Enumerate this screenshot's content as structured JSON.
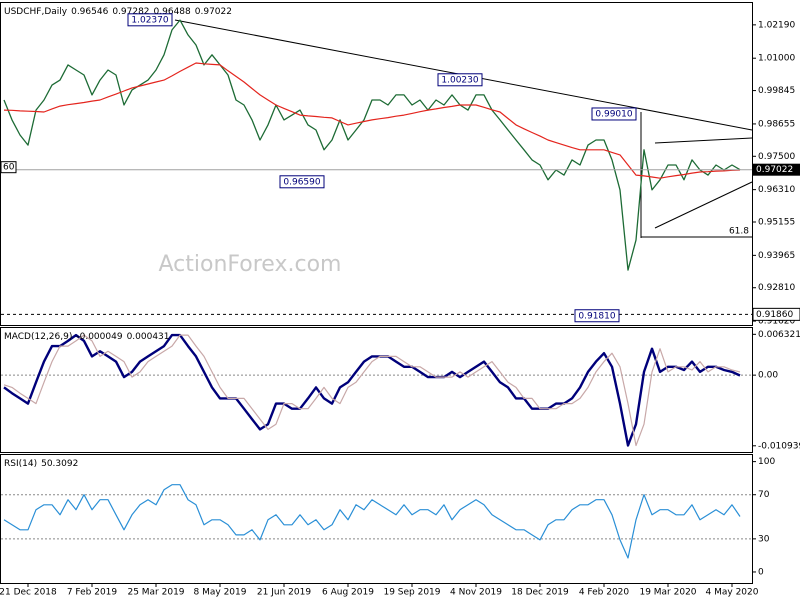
{
  "chart_data": [
    {
      "type": "line",
      "symbol": "USDCHF,Daily",
      "ohlc": [
        0.96546,
        0.97282,
        0.96488,
        0.97022
      ],
      "series": [
        {
          "color": "#1d6b35",
          "values": [
            0.9951,
            0.988,
            0.9826,
            0.979,
            0.9915,
            0.9951,
            1.0004,
            1.0022,
            1.0076,
            1.0058,
            1.004,
            0.9969,
            1.0022,
            1.0058,
            1.004,
            0.9933,
            0.9987,
            1.0004,
            1.0022,
            1.0058,
            1.0112,
            1.0201,
            1.0236,
            1.0183,
            1.0147,
            1.0076,
            1.0112,
            1.0076,
            1.004,
            0.9951,
            0.9933,
            0.988,
            0.9808,
            0.9862,
            0.9933,
            0.988,
            0.9897,
            0.9915,
            0.9862,
            0.9844,
            0.9773,
            0.9808,
            0.988,
            0.9808,
            0.9844,
            0.988,
            0.9951,
            0.9951,
            0.9933,
            0.9969,
            0.9969,
            0.9933,
            0.9951,
            0.9915,
            0.9951,
            0.9933,
            0.9969,
            0.9933,
            0.9915,
            0.9969,
            0.9969,
            0.9915,
            0.988,
            0.9844,
            0.9808,
            0.9773,
            0.9737,
            0.9719,
            0.9666,
            0.9701,
            0.9683,
            0.9737,
            0.9719,
            0.979,
            0.9808,
            0.9808,
            0.9737,
            0.963,
            0.9344,
            0.9451,
            0.9773,
            0.963,
            0.9666,
            0.9719,
            0.9719,
            0.9666,
            0.9737,
            0.9701,
            0.9683,
            0.9719,
            0.9701,
            0.9719,
            0.9702
          ]
        },
        {
          "color": "#e4251e",
          "values": [
            0.9915,
            0.9914,
            0.9912,
            0.9911,
            0.991,
            0.9908,
            0.9919,
            0.9929,
            0.9934,
            0.9938,
            0.9942,
            0.9947,
            0.9951,
            0.9962,
            0.9972,
            0.9983,
            0.9994,
            1.0001,
            1.0008,
            1.0015,
            1.0022,
            1.0037,
            1.0053,
            1.0068,
            1.0083,
            1.008,
            1.0078,
            1.0076,
            1.0055,
            1.0035,
            1.0015,
            0.9992,
            0.9969,
            0.9951,
            0.9933,
            0.9921,
            0.9909,
            0.9897,
            0.9894,
            0.9892,
            0.9889,
            0.9887,
            0.9874,
            0.9862,
            0.9868,
            0.9874,
            0.988,
            0.9884,
            0.9888,
            0.9893,
            0.9897,
            0.9903,
            0.9909,
            0.9915,
            0.9919,
            0.9924,
            0.9928,
            0.9933,
            0.9933,
            0.9933,
            0.9925,
            0.9916,
            0.9908,
            0.9885,
            0.9862,
            0.9848,
            0.9835,
            0.9822,
            0.9808,
            0.9799,
            0.979,
            0.9781,
            0.9773,
            0.9773,
            0.9773,
            0.9773,
            0.9764,
            0.9755,
            0.9719,
            0.9683,
            0.968,
            0.9676,
            0.9672,
            0.9677,
            0.9681,
            0.9685,
            0.969,
            0.9694,
            0.9695,
            0.9697,
            0.9698,
            0.97,
            0.9701
          ]
        }
      ],
      "ylim": [
        0.9148,
        1.0297
      ],
      "yticks": [
        {
          "value": 1.0219,
          "label": "1.02190"
        },
        {
          "value": 1.01,
          "label": "1.01000"
        },
        {
          "value": 0.99845,
          "label": "0.99845"
        },
        {
          "value": 0.98655,
          "label": "0.98655"
        },
        {
          "value": 0.975,
          "label": "0.97500"
        },
        {
          "value": 0.9631,
          "label": "0.96310"
        },
        {
          "value": 0.95155,
          "label": "0.95155"
        },
        {
          "value": 0.93965,
          "label": "0.93965"
        },
        {
          "value": 0.9281,
          "label": "0.92810"
        },
        {
          "value": 0.9162,
          "label": "0.91620"
        }
      ],
      "current": {
        "value": 0.97022,
        "label": "0.97022"
      },
      "support": {
        "value": 0.9186,
        "label": "0.91860"
      },
      "fib": {
        "value": 0.9462,
        "label": "61.8"
      },
      "left_label": "60",
      "annotations": [
        {
          "value": 1.0237,
          "label": "1.02370"
        },
        {
          "value": 1.0023,
          "label": "1.00230"
        },
        {
          "value": 0.9901,
          "label": "0.99010"
        },
        {
          "value": 0.9659,
          "label": "0.96590"
        },
        {
          "value": 0.9181,
          "label": "0.91810"
        }
      ],
      "watermark": "ActionForex.com"
    },
    {
      "type": "line",
      "indicator": "MACD(12,26,9)",
      "readout": [
        -4.9e-05,
        0.000431
      ],
      "series": [
        {
          "color": "#00007a",
          "values": [
            -0.0019,
            -0.0028,
            -0.0036,
            -0.0044,
            -0.0011,
            0.0021,
            0.0045,
            0.0045,
            0.0053,
            0.0062,
            0.0053,
            0.0029,
            0.0037,
            0.0029,
            0.0021,
            -0.0003,
            0.0005,
            0.0021,
            0.0029,
            0.0037,
            0.0045,
            0.0062,
            0.0062,
            0.0045,
            0.0029,
            0.0005,
            -0.0019,
            -0.0036,
            -0.0036,
            -0.0036,
            -0.0052,
            -0.0068,
            -0.0084,
            -0.0076,
            -0.0044,
            -0.0044,
            -0.0052,
            -0.0052,
            -0.0036,
            -0.0019,
            -0.0036,
            -0.0044,
            -0.0019,
            -0.0011,
            0.0005,
            0.0021,
            0.0029,
            0.0029,
            0.0029,
            0.0021,
            0.0013,
            0.0013,
            0.0005,
            -0.0003,
            -0.0003,
            -0.0003,
            0.0005,
            -0.0003,
            0.0005,
            0.0013,
            0.0021,
            0.0005,
            -0.0011,
            -0.0019,
            -0.0036,
            -0.0036,
            -0.0052,
            -0.0052,
            -0.0052,
            -0.0044,
            -0.0044,
            -0.0036,
            -0.0019,
            0.0005,
            0.0021,
            0.0034,
            0.0013,
            -0.0044,
            -0.0109,
            -0.0076,
            0.0005,
            0.0041,
            0.0005,
            0.0013,
            0.0013,
            0.0008,
            0.0021,
            0.0005,
            0.0013,
            0.0013,
            0.0008,
            0.0005,
            -5e-05
          ]
        },
        {
          "color": "#c8a8a8",
          "values": [
            -0.0015,
            -0.0019,
            -0.0028,
            -0.0036,
            -0.0044,
            -0.0011,
            0.0021,
            0.0045,
            0.0045,
            0.0053,
            0.0062,
            0.0053,
            0.0029,
            0.0037,
            0.0029,
            0.0021,
            -0.0003,
            0.0005,
            0.0021,
            0.0029,
            0.0037,
            0.0045,
            0.0062,
            0.0062,
            0.0045,
            0.0029,
            0.0005,
            -0.0019,
            -0.0036,
            -0.0036,
            -0.0036,
            -0.0052,
            -0.0068,
            -0.0084,
            -0.0076,
            -0.0044,
            -0.0044,
            -0.0052,
            -0.0052,
            -0.0036,
            -0.0019,
            -0.0036,
            -0.0044,
            -0.0019,
            -0.0011,
            0.0005,
            0.0021,
            0.0029,
            0.0029,
            0.0029,
            0.0021,
            0.0013,
            0.0013,
            0.0005,
            -0.0003,
            -0.0003,
            -0.0003,
            0.0005,
            -0.0003,
            0.0005,
            0.0013,
            0.0021,
            0.0005,
            -0.0011,
            -0.0019,
            -0.0036,
            -0.0036,
            -0.0052,
            -0.0052,
            -0.0052,
            -0.0044,
            -0.0044,
            -0.0036,
            -0.0019,
            0.0005,
            0.0021,
            0.0034,
            0.0013,
            -0.0044,
            -0.0109,
            -0.0076,
            0.0005,
            0.0041,
            0.0005,
            0.0013,
            0.0013,
            0.0008,
            0.0021,
            0.0005,
            0.0013,
            0.0013,
            0.0008,
            0.0005
          ]
        }
      ],
      "ylim": [
        -0.0119,
        0.0073
      ],
      "yticks": [
        0.006321,
        {
          "value": 0,
          "label": "0.00"
        },
        -0.010939
      ],
      "levels": [
        0
      ]
    },
    {
      "type": "line",
      "indicator": "RSI(14)",
      "readout": [
        50.3092
      ],
      "color": "#2a8fd6",
      "values": [
        47.3,
        42.7,
        38.2,
        38.2,
        56.4,
        60.9,
        60.9,
        51.8,
        65.5,
        56.4,
        70.0,
        56.4,
        65.5,
        65.5,
        51.8,
        38.2,
        51.8,
        60.9,
        65.5,
        60.9,
        74.5,
        79.1,
        79.1,
        65.5,
        60.9,
        42.7,
        47.3,
        47.3,
        42.7,
        33.6,
        33.6,
        38.2,
        29.1,
        47.3,
        51.8,
        42.7,
        42.7,
        51.8,
        42.7,
        47.3,
        38.2,
        42.7,
        56.4,
        47.3,
        60.9,
        56.4,
        65.5,
        60.9,
        56.4,
        51.8,
        60.9,
        51.8,
        56.4,
        56.4,
        51.8,
        60.9,
        47.3,
        56.4,
        60.9,
        65.5,
        60.9,
        51.8,
        47.3,
        42.7,
        38.2,
        38.2,
        33.6,
        29.1,
        42.7,
        47.3,
        47.3,
        56.4,
        60.9,
        60.9,
        65.5,
        65.5,
        51.8,
        29.1,
        12.7,
        47.3,
        70.0,
        51.8,
        56.4,
        56.4,
        51.8,
        51.8,
        60.9,
        47.3,
        51.8,
        56.4,
        51.8,
        60.9,
        50.3
      ],
      "ylim": [
        -10,
        106
      ],
      "yticks": [
        100,
        70,
        30,
        0
      ],
      "levels": [
        70,
        30
      ],
      "categories": [
        null,
        null,
        null,
        "21 Dec 2018",
        null,
        null,
        null,
        null,
        null,
        null,
        null,
        "7 Feb 2019",
        null,
        null,
        null,
        null,
        null,
        null,
        null,
        "25 Mar 2019",
        null,
        null,
        null,
        null,
        null,
        null,
        null,
        "8 May 2019",
        null,
        null,
        null,
        null,
        null,
        null,
        null,
        "21 Jun 2019",
        null,
        null,
        null,
        null,
        null,
        null,
        null,
        "6 Aug 2019",
        null,
        null,
        null,
        null,
        null,
        null,
        null,
        "19 Sep 2019",
        null,
        null,
        null,
        null,
        null,
        null,
        null,
        "4 Nov 2019",
        null,
        null,
        null,
        null,
        null,
        null,
        null,
        "18 Dec 2019",
        null,
        null,
        null,
        null,
        null,
        null,
        null,
        "4 Feb 2020",
        null,
        null,
        null,
        null,
        null,
        null,
        null,
        "19 Mar 2020",
        null,
        null,
        null,
        null,
        null,
        null,
        null,
        "4 May 2020",
        null
      ]
    }
  ]
}
